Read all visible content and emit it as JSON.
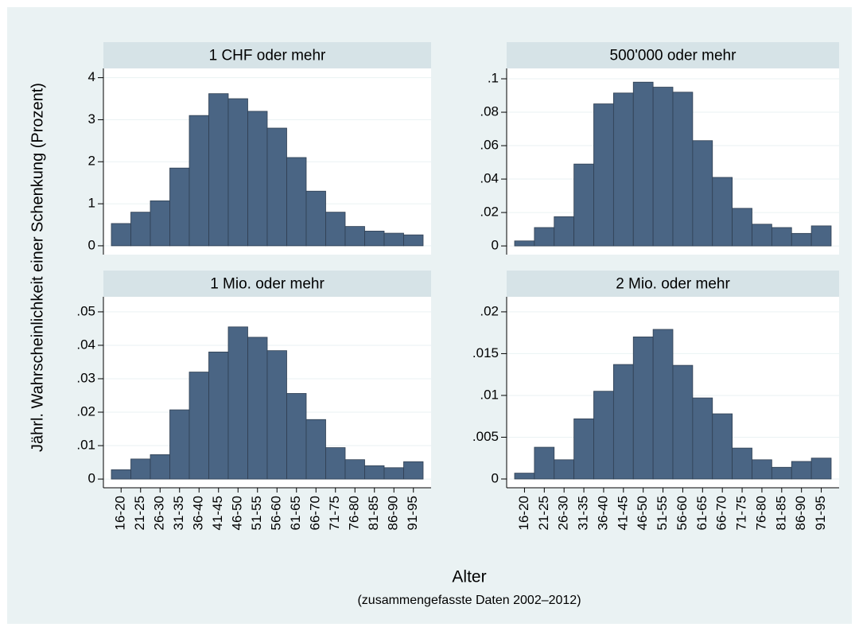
{
  "ylabel": "Jährl. Wahrscheinlichkeit einer Schenkung (Prozent)",
  "xlabel": "Alter",
  "note": "(zusammengefasste Daten 2002–2012)",
  "categories": [
    "16-20",
    "21-25",
    "26-30",
    "31-35",
    "36-40",
    "41-45",
    "46-50",
    "51-55",
    "56-60",
    "61-65",
    "66-70",
    "71-75",
    "76-80",
    "81-85",
    "86-90",
    "91-95"
  ],
  "chart_data": [
    {
      "type": "bar",
      "title": "1 CHF oder mehr",
      "color": "#4a6584",
      "grid": true,
      "values": [
        0.53,
        0.8,
        1.07,
        1.85,
        3.1,
        3.62,
        3.5,
        3.2,
        2.8,
        2.1,
        1.3,
        0.8,
        0.46,
        0.35,
        0.3,
        0.26
      ],
      "ylim": [
        -0.21,
        4.22
      ],
      "yticks": [
        0,
        1,
        2,
        3,
        4
      ]
    },
    {
      "type": "bar",
      "title": "500'000 oder mehr",
      "color": "#4a6584",
      "grid": true,
      "values": [
        0.003,
        0.011,
        0.0175,
        0.049,
        0.085,
        0.0915,
        0.098,
        0.095,
        0.092,
        0.063,
        0.041,
        0.0225,
        0.013,
        0.011,
        0.0075,
        0.012
      ],
      "ylim": [
        -0.0052,
        0.1062
      ],
      "yticks": [
        0,
        {
          "value": 0.02,
          "label": ".02"
        },
        {
          "value": 0.04,
          "label": ".04"
        },
        {
          "value": 0.06,
          "label": ".06"
        },
        {
          "value": 0.08,
          "label": ".08"
        },
        {
          "value": 0.1,
          "label": ".1"
        }
      ]
    },
    {
      "type": "bar",
      "title": "1 Mio. oder mehr",
      "color": "#4a6584",
      "grid": true,
      "values": [
        0.0028,
        0.006,
        0.0073,
        0.0207,
        0.032,
        0.038,
        0.0455,
        0.0424,
        0.0384,
        0.0256,
        0.0178,
        0.0094,
        0.0058,
        0.004,
        0.0034,
        0.0052
      ],
      "ylim": [
        -0.0026,
        0.0545
      ],
      "yticks": [
        0,
        {
          "value": 0.01,
          "label": ".01"
        },
        {
          "value": 0.02,
          "label": ".02"
        },
        {
          "value": 0.03,
          "label": ".03"
        },
        {
          "value": 0.04,
          "label": ".04"
        },
        {
          "value": 0.05,
          "label": ".05"
        }
      ]
    },
    {
      "type": "bar",
      "title": "2 Mio. oder mehr",
      "color": "#4a6584",
      "grid": true,
      "values": [
        0.0007,
        0.0038,
        0.0023,
        0.0072,
        0.0105,
        0.0137,
        0.017,
        0.0179,
        0.0136,
        0.0097,
        0.0078,
        0.0037,
        0.0023,
        0.0014,
        0.0021,
        0.0025
      ],
      "ylim": [
        -0.00105,
        0.0218
      ],
      "yticks": [
        0,
        {
          "value": 0.005,
          "label": ".005"
        },
        {
          "value": 0.01,
          "label": ".01"
        },
        {
          "value": 0.015,
          "label": ".015"
        },
        {
          "value": 0.02,
          "label": ".02"
        }
      ]
    }
  ]
}
